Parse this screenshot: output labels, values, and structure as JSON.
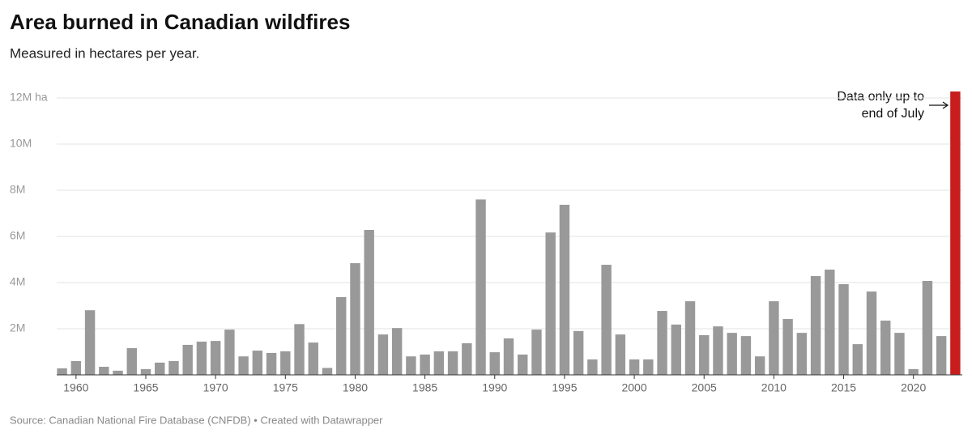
{
  "chart_data": {
    "type": "bar",
    "title": "Area burned in Canadian wildfires",
    "subtitle": "Measured in hectares per year.",
    "source": "Source: Canadian National Fire Database (CNFDB) • Created with Datawrapper",
    "annotation": [
      "Data only up to",
      "end of July"
    ],
    "x": [
      1959,
      1960,
      1961,
      1962,
      1963,
      1964,
      1965,
      1966,
      1967,
      1968,
      1969,
      1970,
      1971,
      1972,
      1973,
      1974,
      1975,
      1976,
      1977,
      1978,
      1979,
      1980,
      1981,
      1982,
      1983,
      1984,
      1985,
      1986,
      1987,
      1988,
      1989,
      1990,
      1991,
      1992,
      1993,
      1994,
      1995,
      1996,
      1997,
      1998,
      1999,
      2000,
      2001,
      2002,
      2003,
      2004,
      2005,
      2006,
      2007,
      2008,
      2009,
      2010,
      2011,
      2012,
      2013,
      2014,
      2015,
      2016,
      2017,
      2018,
      2019,
      2020,
      2021,
      2022,
      2023
    ],
    "values": [
      280000,
      600000,
      2800000,
      350000,
      180000,
      1160000,
      250000,
      530000,
      600000,
      1300000,
      1440000,
      1470000,
      1960000,
      800000,
      1050000,
      950000,
      1020000,
      2200000,
      1400000,
      300000,
      3370000,
      4840000,
      6280000,
      1750000,
      2030000,
      800000,
      880000,
      1020000,
      1020000,
      1370000,
      7600000,
      980000,
      1580000,
      880000,
      1960000,
      6170000,
      7370000,
      1900000,
      670000,
      4770000,
      1750000,
      670000,
      670000,
      2770000,
      2180000,
      3190000,
      1720000,
      2100000,
      1820000,
      1680000,
      800000,
      3190000,
      2420000,
      1820000,
      4280000,
      4560000,
      3930000,
      1330000,
      3610000,
      2350000,
      1820000,
      250000,
      4070000,
      1680000,
      12280000
    ],
    "colors": [
      "#999999",
      "#999999",
      "#999999",
      "#999999",
      "#999999",
      "#999999",
      "#999999",
      "#999999",
      "#999999",
      "#999999",
      "#999999",
      "#999999",
      "#999999",
      "#999999",
      "#999999",
      "#999999",
      "#999999",
      "#999999",
      "#999999",
      "#999999",
      "#999999",
      "#999999",
      "#999999",
      "#999999",
      "#999999",
      "#999999",
      "#999999",
      "#999999",
      "#999999",
      "#999999",
      "#999999",
      "#999999",
      "#999999",
      "#999999",
      "#999999",
      "#999999",
      "#999999",
      "#999999",
      "#999999",
      "#999999",
      "#999999",
      "#999999",
      "#999999",
      "#999999",
      "#999999",
      "#999999",
      "#999999",
      "#999999",
      "#999999",
      "#999999",
      "#999999",
      "#999999",
      "#999999",
      "#999999",
      "#999999",
      "#999999",
      "#999999",
      "#999999",
      "#999999",
      "#999999",
      "#999999",
      "#999999",
      "#999999",
      "#999999",
      "#c71e1d"
    ],
    "xlim": [
      1958.5,
      2023.5
    ],
    "xticks": [
      1960,
      1965,
      1970,
      1975,
      1980,
      1985,
      1990,
      1995,
      2000,
      2005,
      2010,
      2015,
      2020
    ],
    "ylim": [
      0,
      12000000
    ],
    "yticks": [
      {
        "value": 2000000,
        "label": "2M"
      },
      {
        "value": 4000000,
        "label": "4M"
      },
      {
        "value": 6000000,
        "label": "6M"
      },
      {
        "value": 8000000,
        "label": "8M"
      },
      {
        "value": 10000000,
        "label": "10M"
      },
      {
        "value": 12000000,
        "label": "12M ha"
      }
    ],
    "grid": true
  }
}
